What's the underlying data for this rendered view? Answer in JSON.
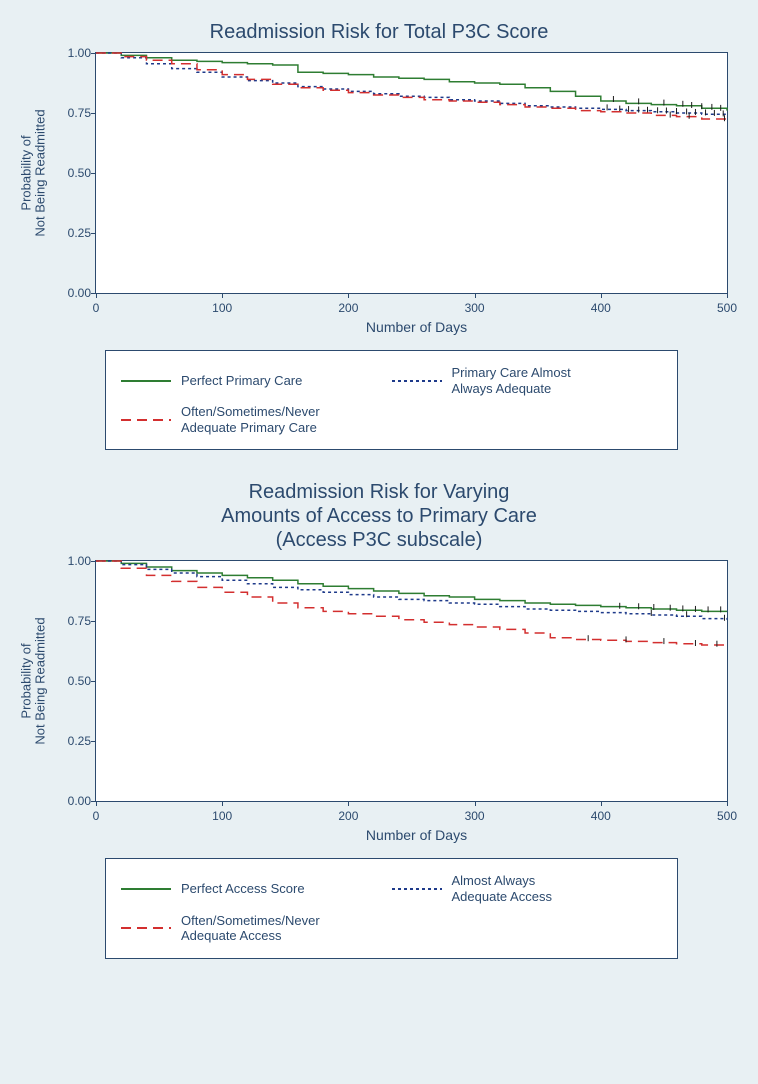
{
  "charts": [
    {
      "title_lines": [
        "Readmission Risk for Total P3C Score"
      ],
      "title_fontsize": 20,
      "title_color": "#2c4a6e",
      "ylabel_lines": [
        "Probability of",
        "Not Being Readmitted"
      ],
      "xlabel": "Number of Days",
      "label_fontsize": 13,
      "background_color": "#ffffff",
      "border_color": "#2c4a6e",
      "xlim": [
        0,
        500
      ],
      "ylim": [
        0,
        1.0
      ],
      "yticks": [
        0.0,
        0.25,
        0.5,
        0.75,
        1.0
      ],
      "ytick_labels": [
        "0.00",
        "0.25",
        "0.50",
        "0.75",
        "1.00"
      ],
      "xticks": [
        0,
        100,
        200,
        300,
        400,
        500
      ],
      "xtick_labels": [
        "0",
        "100",
        "200",
        "300",
        "400",
        "500"
      ],
      "series": [
        {
          "name": "perfect",
          "color": "#2e7d32",
          "dash": "none",
          "width": 1.5,
          "points": [
            [
              0,
              1.0
            ],
            [
              20,
              0.99
            ],
            [
              40,
              0.98
            ],
            [
              60,
              0.97
            ],
            [
              80,
              0.965
            ],
            [
              100,
              0.96
            ],
            [
              120,
              0.955
            ],
            [
              140,
              0.95
            ],
            [
              160,
              0.92
            ],
            [
              180,
              0.915
            ],
            [
              200,
              0.91
            ],
            [
              220,
              0.9
            ],
            [
              240,
              0.895
            ],
            [
              260,
              0.89
            ],
            [
              280,
              0.88
            ],
            [
              300,
              0.875
            ],
            [
              320,
              0.87
            ],
            [
              340,
              0.855
            ],
            [
              360,
              0.84
            ],
            [
              380,
              0.82
            ],
            [
              400,
              0.8
            ],
            [
              420,
              0.79
            ],
            [
              440,
              0.785
            ],
            [
              460,
              0.78
            ],
            [
              480,
              0.77
            ],
            [
              500,
              0.76
            ]
          ],
          "censor_ticks": [
            [
              410,
              0.8
            ],
            [
              430,
              0.79
            ],
            [
              450,
              0.785
            ],
            [
              465,
              0.78
            ],
            [
              472,
              0.775
            ],
            [
              480,
              0.77
            ],
            [
              488,
              0.767
            ],
            [
              495,
              0.763
            ]
          ]
        },
        {
          "name": "almost",
          "color": "#1e3a8a",
          "dash": "3,3",
          "width": 1.5,
          "points": [
            [
              0,
              1.0
            ],
            [
              20,
              0.98
            ],
            [
              40,
              0.955
            ],
            [
              60,
              0.935
            ],
            [
              80,
              0.92
            ],
            [
              100,
              0.9
            ],
            [
              120,
              0.885
            ],
            [
              140,
              0.875
            ],
            [
              160,
              0.86
            ],
            [
              180,
              0.85
            ],
            [
              200,
              0.84
            ],
            [
              220,
              0.83
            ],
            [
              240,
              0.82
            ],
            [
              260,
              0.815
            ],
            [
              280,
              0.805
            ],
            [
              300,
              0.8
            ],
            [
              320,
              0.79
            ],
            [
              340,
              0.78
            ],
            [
              360,
              0.775
            ],
            [
              380,
              0.77
            ],
            [
              400,
              0.765
            ],
            [
              420,
              0.76
            ],
            [
              440,
              0.755
            ],
            [
              460,
              0.75
            ],
            [
              480,
              0.745
            ],
            [
              500,
              0.74
            ]
          ],
          "censor_ticks": [
            [
              405,
              0.765
            ],
            [
              415,
              0.76
            ],
            [
              422,
              0.758
            ],
            [
              430,
              0.756
            ],
            [
              437,
              0.755
            ],
            [
              445,
              0.753
            ],
            [
              452,
              0.752
            ],
            [
              460,
              0.75
            ],
            [
              468,
              0.748
            ],
            [
              475,
              0.746
            ],
            [
              483,
              0.744
            ],
            [
              490,
              0.742
            ],
            [
              497,
              0.74
            ]
          ]
        },
        {
          "name": "often",
          "color": "#d32f2f",
          "dash": "10,6",
          "width": 1.5,
          "points": [
            [
              0,
              1.0
            ],
            [
              20,
              0.985
            ],
            [
              40,
              0.97
            ],
            [
              60,
              0.955
            ],
            [
              80,
              0.93
            ],
            [
              100,
              0.91
            ],
            [
              120,
              0.89
            ],
            [
              140,
              0.87
            ],
            [
              160,
              0.855
            ],
            [
              180,
              0.845
            ],
            [
              200,
              0.835
            ],
            [
              220,
              0.825
            ],
            [
              240,
              0.815
            ],
            [
              260,
              0.805
            ],
            [
              280,
              0.8
            ],
            [
              300,
              0.795
            ],
            [
              320,
              0.785
            ],
            [
              340,
              0.775
            ],
            [
              360,
              0.77
            ],
            [
              380,
              0.76
            ],
            [
              400,
              0.755
            ],
            [
              420,
              0.75
            ],
            [
              440,
              0.74
            ],
            [
              460,
              0.735
            ],
            [
              480,
              0.725
            ],
            [
              500,
              0.72
            ]
          ],
          "censor_ticks": [
            [
              455,
              0.735
            ],
            [
              470,
              0.73
            ],
            [
              498,
              0.72
            ]
          ]
        }
      ],
      "legend": [
        {
          "swatch_color": "#2e7d32",
          "dash": "none",
          "label_lines": [
            "Perfect Primary Care"
          ]
        },
        {
          "swatch_color": "#1e3a8a",
          "dash": "3,3",
          "label_lines": [
            "Primary Care Almost",
            "Always Adequate"
          ]
        },
        {
          "swatch_color": "#d32f2f",
          "dash": "10,6",
          "label_lines": [
            "Often/Sometimes/Never",
            "Adequate Primary Care"
          ]
        }
      ]
    },
    {
      "title_lines": [
        "Readmission Risk for Varying",
        "Amounts of Access to Primary Care",
        "(Access P3C subscale)"
      ],
      "title_fontsize": 20,
      "title_color": "#2c4a6e",
      "ylabel_lines": [
        "Probability of",
        "Not Being Readmitted"
      ],
      "xlabel": "Number of Days",
      "label_fontsize": 13,
      "background_color": "#ffffff",
      "border_color": "#2c4a6e",
      "xlim": [
        0,
        500
      ],
      "ylim": [
        0,
        1.0
      ],
      "yticks": [
        0.0,
        0.25,
        0.5,
        0.75,
        1.0
      ],
      "ytick_labels": [
        "0.00",
        "0.25",
        "0.50",
        "0.75",
        "1.00"
      ],
      "xticks": [
        0,
        100,
        200,
        300,
        400,
        500
      ],
      "xtick_labels": [
        "0",
        "100",
        "200",
        "300",
        "400",
        "500"
      ],
      "series": [
        {
          "name": "perfect",
          "color": "#2e7d32",
          "dash": "none",
          "width": 1.5,
          "points": [
            [
              0,
              1.0
            ],
            [
              20,
              0.99
            ],
            [
              40,
              0.975
            ],
            [
              60,
              0.96
            ],
            [
              80,
              0.95
            ],
            [
              100,
              0.94
            ],
            [
              120,
              0.93
            ],
            [
              140,
              0.92
            ],
            [
              160,
              0.905
            ],
            [
              180,
              0.895
            ],
            [
              200,
              0.885
            ],
            [
              220,
              0.875
            ],
            [
              240,
              0.865
            ],
            [
              260,
              0.855
            ],
            [
              280,
              0.85
            ],
            [
              300,
              0.84
            ],
            [
              320,
              0.835
            ],
            [
              340,
              0.825
            ],
            [
              360,
              0.82
            ],
            [
              380,
              0.815
            ],
            [
              400,
              0.81
            ],
            [
              420,
              0.805
            ],
            [
              440,
              0.8
            ],
            [
              460,
              0.795
            ],
            [
              480,
              0.79
            ],
            [
              500,
              0.79
            ]
          ],
          "censor_ticks": [
            [
              415,
              0.805
            ],
            [
              430,
              0.803
            ],
            [
              442,
              0.8
            ],
            [
              455,
              0.797
            ],
            [
              465,
              0.794
            ],
            [
              475,
              0.792
            ],
            [
              485,
              0.79
            ],
            [
              495,
              0.79
            ]
          ]
        },
        {
          "name": "almost",
          "color": "#1e3a8a",
          "dash": "3,3",
          "width": 1.5,
          "points": [
            [
              0,
              1.0
            ],
            [
              20,
              0.985
            ],
            [
              40,
              0.965
            ],
            [
              60,
              0.95
            ],
            [
              80,
              0.935
            ],
            [
              100,
              0.92
            ],
            [
              120,
              0.905
            ],
            [
              140,
              0.89
            ],
            [
              160,
              0.88
            ],
            [
              180,
              0.87
            ],
            [
              200,
              0.86
            ],
            [
              220,
              0.85
            ],
            [
              240,
              0.84
            ],
            [
              260,
              0.835
            ],
            [
              280,
              0.825
            ],
            [
              300,
              0.82
            ],
            [
              320,
              0.81
            ],
            [
              340,
              0.8
            ],
            [
              360,
              0.795
            ],
            [
              380,
              0.79
            ],
            [
              400,
              0.785
            ],
            [
              420,
              0.78
            ],
            [
              440,
              0.775
            ],
            [
              460,
              0.77
            ],
            [
              480,
              0.76
            ],
            [
              500,
              0.755
            ]
          ],
          "censor_ticks": [
            [
              440,
              0.775
            ],
            [
              468,
              0.77
            ],
            [
              498,
              0.755
            ]
          ]
        },
        {
          "name": "often",
          "color": "#d32f2f",
          "dash": "10,6",
          "width": 1.5,
          "points": [
            [
              0,
              1.0
            ],
            [
              20,
              0.97
            ],
            [
              40,
              0.94
            ],
            [
              60,
              0.915
            ],
            [
              80,
              0.89
            ],
            [
              100,
              0.87
            ],
            [
              120,
              0.85
            ],
            [
              140,
              0.825
            ],
            [
              160,
              0.805
            ],
            [
              180,
              0.79
            ],
            [
              200,
              0.78
            ],
            [
              220,
              0.77
            ],
            [
              240,
              0.755
            ],
            [
              260,
              0.745
            ],
            [
              280,
              0.735
            ],
            [
              300,
              0.725
            ],
            [
              320,
              0.715
            ],
            [
              340,
              0.7
            ],
            [
              360,
              0.68
            ],
            [
              380,
              0.673
            ],
            [
              400,
              0.67
            ],
            [
              420,
              0.665
            ],
            [
              440,
              0.66
            ],
            [
              460,
              0.655
            ],
            [
              480,
              0.65
            ],
            [
              500,
              0.645
            ]
          ],
          "censor_ticks": [
            [
              390,
              0.67
            ],
            [
              420,
              0.665
            ],
            [
              450,
              0.658
            ],
            [
              475,
              0.65
            ],
            [
              492,
              0.647
            ]
          ]
        }
      ],
      "legend": [
        {
          "swatch_color": "#2e7d32",
          "dash": "none",
          "label_lines": [
            "Perfect Access Score"
          ]
        },
        {
          "swatch_color": "#1e3a8a",
          "dash": "3,3",
          "label_lines": [
            "Almost Always",
            "Adequate Access"
          ]
        },
        {
          "swatch_color": "#d32f2f",
          "dash": "10,6",
          "label_lines": [
            "Often/Sometimes/Never",
            "Adequate Access"
          ]
        }
      ]
    }
  ]
}
